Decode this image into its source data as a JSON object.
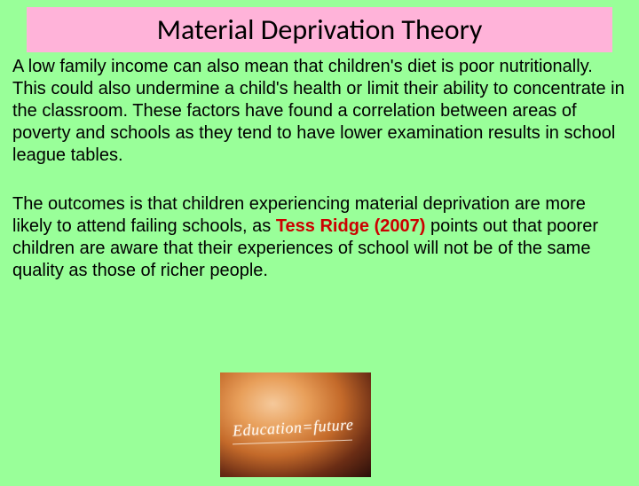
{
  "slide": {
    "background_color": "#99ff99",
    "title_box_color": "#ffb3d9",
    "title": "Material Deprivation Theory",
    "title_font": "Calibri",
    "title_fontsize": 32,
    "body_font": "Comic Sans MS",
    "body_fontsize": 20,
    "highlight_color": "#cc0000",
    "paragraph1": "A low family income can also mean that children's diet is poor nutritionally. This could also undermine a child's health or limit their ability to concentrate in the classroom. These factors have found a correlation between areas of poverty and schools as they tend to have lower examination results in school league tables.",
    "paragraph2_pre": "The outcomes is that children experiencing material deprivation are more likely to attend failing schools, as ",
    "paragraph2_highlight": "Tess Ridge (2007)",
    "paragraph2_post": " points out that poorer children are aware that their experiences of school will not be of the same quality as those of richer people.",
    "image": {
      "caption_text": "Education=future",
      "description": "chalkboard-education-future",
      "board_gradient_colors": [
        "#f5c99b",
        "#e89f5a",
        "#c46a2a",
        "#6b2d15",
        "#2a0f0a"
      ],
      "text_color": "#fff8f0"
    }
  }
}
